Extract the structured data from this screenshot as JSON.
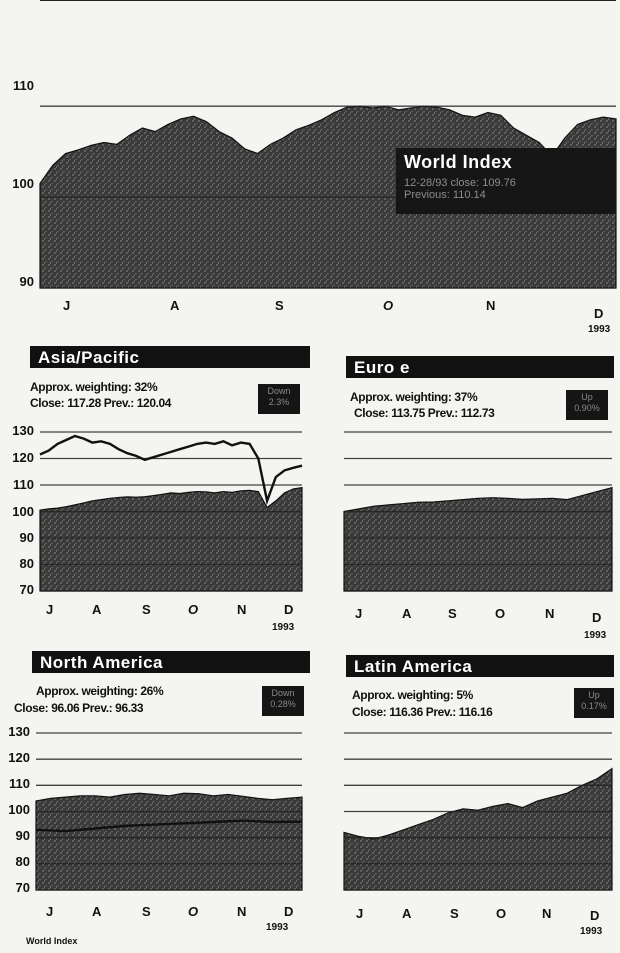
{
  "chart_data": [
    {
      "type": "area",
      "id": "world",
      "title": "World Index",
      "close_note": "12-28/93 close: 109.76",
      "prev_note": "Previous: 110.14",
      "yticks": [
        "110",
        "100",
        "90"
      ],
      "ylim": [
        90,
        112
      ],
      "months": [
        "J",
        "A",
        "S",
        "O",
        "N",
        "D"
      ],
      "year": "1993",
      "x": [
        0,
        4,
        8,
        12,
        16,
        20,
        24,
        28,
        32,
        36,
        40,
        44,
        48,
        52,
        56,
        60,
        64,
        68,
        72,
        76,
        80,
        84,
        88,
        92,
        96,
        100,
        104,
        108,
        112,
        116,
        120,
        124,
        128,
        132,
        136,
        140,
        144,
        148,
        152,
        156,
        160,
        164,
        168,
        172,
        176,
        180
      ],
      "values": [
        101.5,
        103.5,
        104.8,
        105.2,
        105.7,
        106.0,
        105.8,
        106.8,
        107.6,
        107.2,
        108.0,
        108.6,
        108.9,
        108.3,
        107.2,
        106.5,
        105.3,
        104.8,
        105.8,
        106.5,
        107.4,
        107.9,
        108.5,
        109.3,
        109.9,
        110.0,
        109.8,
        110.0,
        109.6,
        109.8,
        110.0,
        109.9,
        109.6,
        109.0,
        108.8,
        109.3,
        109.0,
        107.6,
        106.8,
        106.0,
        104.5,
        106.5,
        108.0,
        108.5,
        108.8,
        108.6
      ],
      "legend": "inside-right"
    },
    {
      "type": "area",
      "id": "asia",
      "title": "Asia/Pacific",
      "weighting": "Approx. weighting: 32%",
      "close_prev": "Close: 117.28 Prev.: 120.04",
      "badge": [
        "Down",
        "2.3%"
      ],
      "yticks": [
        "130",
        "120",
        "110",
        "100",
        "90",
        "80",
        "70"
      ],
      "ylim": [
        70,
        130
      ],
      "months": [
        "J",
        "A",
        "S",
        "O",
        "N",
        "D"
      ],
      "year": "1993",
      "x": [
        0,
        6,
        12,
        18,
        24,
        30,
        36,
        42,
        48,
        54,
        60,
        66,
        72,
        78,
        84,
        90,
        96,
        102,
        108,
        114,
        120,
        126,
        132,
        138,
        144,
        150,
        156,
        162,
        168,
        174,
        180
      ],
      "values": [
        100.5,
        101.0,
        101.3,
        101.8,
        102.5,
        103.2,
        104.0,
        104.5,
        105.0,
        105.3,
        105.5,
        105.4,
        105.6,
        106.0,
        106.5,
        107.0,
        106.8,
        107.2,
        107.5,
        107.4,
        107.0,
        107.5,
        107.2,
        107.8,
        108.0,
        107.5,
        101.5,
        104.0,
        107.0,
        108.5,
        109.0
      ],
      "line_x": [
        0,
        6,
        12,
        18,
        24,
        30,
        36,
        42,
        48,
        54,
        60,
        66,
        72,
        78,
        84,
        90,
        96,
        102,
        108,
        114,
        120,
        126,
        132,
        138,
        144,
        150,
        156,
        162,
        168,
        174,
        180
      ],
      "line_values": [
        121.5,
        123.0,
        125.5,
        127.0,
        128.5,
        127.5,
        126.0,
        126.5,
        125.5,
        123.5,
        122.0,
        121.0,
        119.5,
        120.5,
        121.5,
        122.5,
        123.5,
        124.5,
        125.5,
        126.0,
        125.5,
        126.5,
        125.0,
        126.0,
        125.5,
        120.0,
        104.0,
        113.0,
        115.5,
        116.5,
        117.3
      ]
    },
    {
      "type": "area",
      "id": "europe",
      "title": "Euro e",
      "weighting": "Approx. weighting: 37%",
      "close_prev": "Close: 113.75 Prev.: 112.73",
      "badge": [
        "Up",
        "0.90%"
      ],
      "yticks": [],
      "ylim": [
        70,
        130
      ],
      "months": [
        "J",
        "A",
        "S",
        "O",
        "N",
        "D"
      ],
      "year": "1993",
      "x": [
        0,
        10,
        20,
        30,
        40,
        50,
        60,
        70,
        80,
        90,
        100,
        110,
        120,
        130,
        140,
        150,
        160,
        170,
        180
      ],
      "values": [
        100.0,
        101.0,
        102.0,
        102.5,
        103.0,
        103.5,
        103.6,
        104.0,
        104.5,
        105.0,
        105.2,
        105.0,
        104.6,
        104.8,
        105.0,
        104.5,
        106.0,
        107.5,
        109.0
      ]
    },
    {
      "type": "area",
      "id": "namerica",
      "title": "North America",
      "weighting": "Approx. weighting: 26%",
      "close_prev": "Close: 96.06 Prev.: 96.33",
      "badge": [
        "Down",
        "0.28%"
      ],
      "yticks": [
        "130",
        "120",
        "110",
        "100",
        "90",
        "80",
        "70"
      ],
      "ylim": [
        70,
        130
      ],
      "months": [
        "J",
        "A",
        "S",
        "O",
        "N",
        "D"
      ],
      "year": "1993",
      "x": [
        0,
        10,
        20,
        30,
        40,
        50,
        60,
        70,
        80,
        90,
        100,
        110,
        120,
        130,
        140,
        150,
        160,
        170,
        180
      ],
      "values": [
        104.0,
        105.0,
        105.5,
        106.0,
        106.0,
        105.5,
        106.5,
        107.0,
        106.5,
        106.0,
        107.0,
        106.8,
        106.0,
        106.5,
        105.8,
        105.0,
        104.5,
        105.0,
        105.5
      ],
      "line_x": [
        0,
        20,
        40,
        60,
        80,
        100,
        120,
        140,
        160,
        180
      ],
      "line_values": [
        93.0,
        92.5,
        93.5,
        94.5,
        95.0,
        95.5,
        96.0,
        96.5,
        96.0,
        96.1
      ]
    },
    {
      "type": "area",
      "id": "latam",
      "title": "Latin America",
      "weighting": "Approx. weighting: 5%",
      "close_prev": "Close: 116.36 Prev.: 116.16",
      "badge": [
        "Up",
        "0.17%"
      ],
      "yticks": [],
      "ylim": [
        70,
        130
      ],
      "months": [
        "J",
        "A",
        "S",
        "O",
        "N",
        "D"
      ],
      "year": "1993",
      "x": [
        0,
        10,
        20,
        30,
        40,
        50,
        60,
        70,
        80,
        90,
        100,
        110,
        120,
        130,
        140,
        150,
        160,
        170,
        180
      ],
      "values": [
        92.0,
        90.5,
        89.5,
        91.0,
        93.0,
        95.0,
        97.0,
        99.5,
        101.0,
        100.5,
        102.0,
        103.0,
        101.5,
        104.0,
        105.5,
        107.0,
        110.0,
        112.5,
        116.4
      ]
    }
  ],
  "footer": {
    "source": "World Index"
  }
}
